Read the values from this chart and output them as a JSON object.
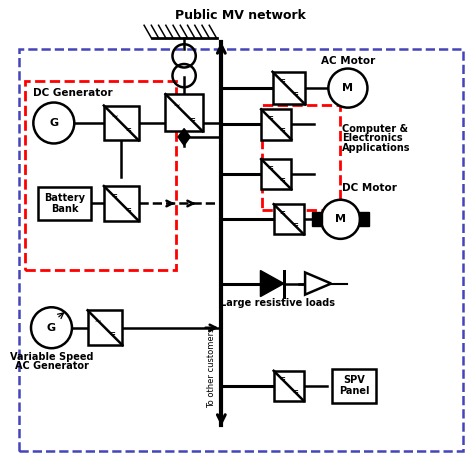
{
  "title": "Public MV network",
  "bg_color": "#ffffff",
  "labels": {
    "dc_gen": "DC Generator",
    "battery_line1": "Battery",
    "battery_line2": "Bank",
    "ac_motor": "AC Motor",
    "comp_line1": "Computer &",
    "comp_line2": "Electronics",
    "comp_line3": "Applications",
    "dc_motor": "DC Motor",
    "var_speed_line1": "Variable Speed",
    "var_speed_line2": "AC Generator",
    "large_res": "Large resistive loads",
    "spv_line1": "SPV",
    "spv_line2": "Panel",
    "to_cust": "To other customers"
  }
}
